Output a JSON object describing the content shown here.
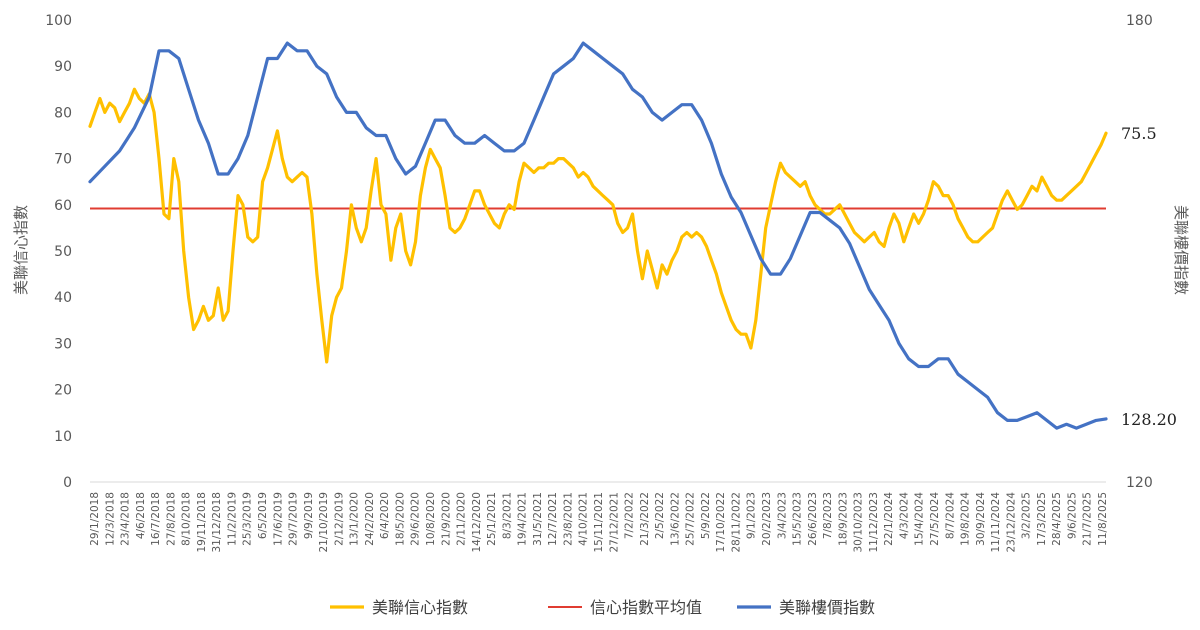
{
  "chart_data": {
    "type": "line",
    "y_left": {
      "label": "美聯信心指數",
      "range": [
        0,
        100
      ],
      "ticks": [
        "0",
        "10",
        "20",
        "30",
        "40",
        "50",
        "60",
        "70",
        "80",
        "90",
        "100"
      ]
    },
    "y_right": {
      "label": "美聯樓價指數",
      "range": [
        120,
        180
      ],
      "ticks": [
        "120",
        "180"
      ]
    },
    "x_tick_labels": [
      "29/1/2018",
      "12/3/2018",
      "23/4/2018",
      "4/6/2018",
      "16/7/2018",
      "27/8/2018",
      "8/10/2018",
      "19/11/2018",
      "31/12/2018",
      "11/2/2019",
      "25/3/2019",
      "6/5/2019",
      "17/6/2019",
      "29/7/2019",
      "9/9/2019",
      "21/10/2019",
      "2/12/2019",
      "13/1/2020",
      "24/2/2020",
      "6/4/2020",
      "18/5/2020",
      "29/6/2020",
      "10/8/2020",
      "21/9/2020",
      "2/11/2020",
      "14/12/2020",
      "25/1/2021",
      "8/3/2021",
      "19/4/2021",
      "31/5/2021",
      "12/7/2021",
      "23/8/2021",
      "4/10/2021",
      "15/11/2021",
      "27/12/2021",
      "7/2/2022",
      "21/3/2022",
      "2/5/2022",
      "13/6/2022",
      "25/7/2022",
      "5/9/2022",
      "17/10/2022",
      "28/11/2022",
      "9/1/2023",
      "20/2/2023",
      "3/4/2023",
      "15/5/2023",
      "26/6/2023",
      "7/8/2023",
      "18/9/2023",
      "30/10/2023",
      "11/12/2023",
      "22/1/2024",
      "4/3/2024",
      "15/4/2024",
      "27/5/2024",
      "8/7/2024",
      "19/8/2024",
      "30/9/2024",
      "11/11/2024",
      "23/12/2024",
      "3/2/2025",
      "17/3/2025",
      "28/4/2025",
      "9/6/2025",
      "21/7/2025",
      "11/8/2025"
    ],
    "x_range": [
      "29/1/2018",
      "11/8/2025"
    ],
    "series": [
      {
        "name": "美聯信心指數",
        "axis": "left",
        "color": "#FFC000",
        "end_label": "75.5",
        "points": [
          [
            0,
            77
          ],
          [
            1,
            80
          ],
          [
            2,
            83
          ],
          [
            3,
            80
          ],
          [
            4,
            82
          ],
          [
            5,
            81
          ],
          [
            6,
            78
          ],
          [
            7,
            80
          ],
          [
            8,
            82
          ],
          [
            9,
            85
          ],
          [
            10,
            83
          ],
          [
            11,
            82
          ],
          [
            12,
            84
          ],
          [
            13,
            80
          ],
          [
            14,
            70
          ],
          [
            15,
            58
          ],
          [
            16,
            57
          ],
          [
            17,
            70
          ],
          [
            18,
            65
          ],
          [
            19,
            50
          ],
          [
            20,
            40
          ],
          [
            21,
            33
          ],
          [
            22,
            35
          ],
          [
            23,
            38
          ],
          [
            24,
            35
          ],
          [
            25,
            36
          ],
          [
            26,
            42
          ],
          [
            27,
            35
          ],
          [
            28,
            37
          ],
          [
            29,
            50
          ],
          [
            30,
            62
          ],
          [
            31,
            60
          ],
          [
            32,
            53
          ],
          [
            33,
            52
          ],
          [
            34,
            53
          ],
          [
            35,
            65
          ],
          [
            36,
            68
          ],
          [
            37,
            72
          ],
          [
            38,
            76
          ],
          [
            39,
            70
          ],
          [
            40,
            66
          ],
          [
            41,
            65
          ],
          [
            42,
            66
          ],
          [
            43,
            67
          ],
          [
            44,
            66
          ],
          [
            45,
            58
          ],
          [
            46,
            45
          ],
          [
            47,
            35
          ],
          [
            48,
            26
          ],
          [
            49,
            36
          ],
          [
            50,
            40
          ],
          [
            51,
            42
          ],
          [
            52,
            50
          ],
          [
            53,
            60
          ],
          [
            54,
            55
          ],
          [
            55,
            52
          ],
          [
            56,
            55
          ],
          [
            57,
            63
          ],
          [
            58,
            70
          ],
          [
            59,
            60
          ],
          [
            60,
            58
          ],
          [
            61,
            48
          ],
          [
            62,
            55
          ],
          [
            63,
            58
          ],
          [
            64,
            50
          ],
          [
            65,
            47
          ],
          [
            66,
            52
          ],
          [
            67,
            62
          ],
          [
            68,
            68
          ],
          [
            69,
            72
          ],
          [
            70,
            70
          ],
          [
            71,
            68
          ],
          [
            72,
            62
          ],
          [
            73,
            55
          ],
          [
            74,
            54
          ],
          [
            75,
            55
          ],
          [
            76,
            57
          ],
          [
            77,
            60
          ],
          [
            78,
            63
          ],
          [
            79,
            63
          ],
          [
            80,
            60
          ],
          [
            81,
            58
          ],
          [
            82,
            56
          ],
          [
            83,
            55
          ],
          [
            84,
            58
          ],
          [
            85,
            60
          ],
          [
            86,
            59
          ],
          [
            87,
            65
          ],
          [
            88,
            69
          ],
          [
            89,
            68
          ],
          [
            90,
            67
          ],
          [
            91,
            68
          ],
          [
            92,
            68
          ],
          [
            93,
            69
          ],
          [
            94,
            69
          ],
          [
            95,
            70
          ],
          [
            96,
            70
          ],
          [
            97,
            69
          ],
          [
            98,
            68
          ],
          [
            99,
            66
          ],
          [
            100,
            67
          ],
          [
            101,
            66
          ],
          [
            102,
            64
          ],
          [
            103,
            63
          ],
          [
            104,
            62
          ],
          [
            105,
            61
          ],
          [
            106,
            60
          ],
          [
            107,
            56
          ],
          [
            108,
            54
          ],
          [
            109,
            55
          ],
          [
            110,
            58
          ],
          [
            111,
            50
          ],
          [
            112,
            44
          ],
          [
            113,
            50
          ],
          [
            114,
            46
          ],
          [
            115,
            42
          ],
          [
            116,
            47
          ],
          [
            117,
            45
          ],
          [
            118,
            48
          ],
          [
            119,
            50
          ],
          [
            120,
            53
          ],
          [
            121,
            54
          ],
          [
            122,
            53
          ],
          [
            123,
            54
          ],
          [
            124,
            53
          ],
          [
            125,
            51
          ],
          [
            126,
            48
          ],
          [
            127,
            45
          ],
          [
            128,
            41
          ],
          [
            129,
            38
          ],
          [
            130,
            35
          ],
          [
            131,
            33
          ],
          [
            132,
            32
          ],
          [
            133,
            32
          ],
          [
            134,
            29
          ],
          [
            135,
            35
          ],
          [
            136,
            45
          ],
          [
            137,
            55
          ],
          [
            138,
            60
          ],
          [
            139,
            65
          ],
          [
            140,
            69
          ],
          [
            141,
            67
          ],
          [
            142,
            66
          ],
          [
            143,
            65
          ],
          [
            144,
            64
          ],
          [
            145,
            65
          ],
          [
            146,
            62
          ],
          [
            147,
            60
          ],
          [
            148,
            59
          ],
          [
            149,
            58
          ],
          [
            150,
            58
          ],
          [
            151,
            59
          ],
          [
            152,
            60
          ],
          [
            153,
            58
          ],
          [
            154,
            56
          ],
          [
            155,
            54
          ],
          [
            156,
            53
          ],
          [
            157,
            52
          ],
          [
            158,
            53
          ],
          [
            159,
            54
          ],
          [
            160,
            52
          ],
          [
            161,
            51
          ],
          [
            162,
            55
          ],
          [
            163,
            58
          ],
          [
            164,
            56
          ],
          [
            165,
            52
          ],
          [
            166,
            55
          ],
          [
            167,
            58
          ],
          [
            168,
            56
          ],
          [
            169,
            58
          ],
          [
            170,
            61
          ],
          [
            171,
            65
          ],
          [
            172,
            64
          ],
          [
            173,
            62
          ],
          [
            174,
            62
          ],
          [
            175,
            60
          ],
          [
            176,
            57
          ],
          [
            177,
            55
          ],
          [
            178,
            53
          ],
          [
            179,
            52
          ],
          [
            180,
            52
          ],
          [
            181,
            53
          ],
          [
            182,
            54
          ],
          [
            183,
            55
          ],
          [
            184,
            58
          ],
          [
            185,
            61
          ],
          [
            186,
            63
          ],
          [
            187,
            61
          ],
          [
            188,
            59
          ],
          [
            189,
            60
          ],
          [
            190,
            62
          ],
          [
            191,
            64
          ],
          [
            192,
            63
          ],
          [
            193,
            66
          ],
          [
            194,
            64
          ],
          [
            195,
            62
          ],
          [
            196,
            61
          ],
          [
            197,
            61
          ],
          [
            198,
            62
          ],
          [
            199,
            63
          ],
          [
            200,
            64
          ],
          [
            201,
            65
          ],
          [
            202,
            67
          ],
          [
            203,
            69
          ],
          [
            204,
            71
          ],
          [
            205,
            73
          ],
          [
            206,
            75.5
          ]
        ]
      },
      {
        "name": "信心指數平均值",
        "axis": "left",
        "color": "#E03C31",
        "value": 59.2
      },
      {
        "name": "美聯樓價指數",
        "axis": "right",
        "color": "#4472C4",
        "end_label": "128.20",
        "points": [
          [
            0,
            159
          ],
          [
            3,
            161
          ],
          [
            6,
            163
          ],
          [
            9,
            166
          ],
          [
            12,
            170
          ],
          [
            14,
            176
          ],
          [
            16,
            176
          ],
          [
            18,
            175
          ],
          [
            20,
            171
          ],
          [
            22,
            167
          ],
          [
            24,
            164
          ],
          [
            26,
            160
          ],
          [
            28,
            160
          ],
          [
            30,
            162
          ],
          [
            32,
            165
          ],
          [
            34,
            170
          ],
          [
            36,
            175
          ],
          [
            38,
            175
          ],
          [
            40,
            177
          ],
          [
            42,
            176
          ],
          [
            44,
            176
          ],
          [
            46,
            174
          ],
          [
            48,
            173
          ],
          [
            50,
            170
          ],
          [
            52,
            168
          ],
          [
            54,
            168
          ],
          [
            56,
            166
          ],
          [
            58,
            165
          ],
          [
            60,
            165
          ],
          [
            62,
            162
          ],
          [
            64,
            160
          ],
          [
            66,
            161
          ],
          [
            68,
            164
          ],
          [
            70,
            167
          ],
          [
            72,
            167
          ],
          [
            74,
            165
          ],
          [
            76,
            164
          ],
          [
            78,
            164
          ],
          [
            80,
            165
          ],
          [
            82,
            164
          ],
          [
            84,
            163
          ],
          [
            86,
            163
          ],
          [
            88,
            164
          ],
          [
            90,
            167
          ],
          [
            92,
            170
          ],
          [
            94,
            173
          ],
          [
            96,
            174
          ],
          [
            98,
            175
          ],
          [
            100,
            177
          ],
          [
            102,
            176
          ],
          [
            104,
            175
          ],
          [
            106,
            174
          ],
          [
            108,
            173
          ],
          [
            110,
            171
          ],
          [
            112,
            170
          ],
          [
            114,
            168
          ],
          [
            116,
            167
          ],
          [
            118,
            168
          ],
          [
            120,
            169
          ],
          [
            122,
            169
          ],
          [
            124,
            167
          ],
          [
            126,
            164
          ],
          [
            128,
            160
          ],
          [
            130,
            157
          ],
          [
            132,
            155
          ],
          [
            134,
            152
          ],
          [
            136,
            149
          ],
          [
            138,
            147
          ],
          [
            140,
            147
          ],
          [
            142,
            149
          ],
          [
            144,
            152
          ],
          [
            146,
            155
          ],
          [
            148,
            155
          ],
          [
            150,
            154
          ],
          [
            152,
            153
          ],
          [
            154,
            151
          ],
          [
            156,
            148
          ],
          [
            158,
            145
          ],
          [
            160,
            143
          ],
          [
            162,
            141
          ],
          [
            164,
            138
          ],
          [
            166,
            136
          ],
          [
            168,
            135
          ],
          [
            170,
            135
          ],
          [
            172,
            136
          ],
          [
            174,
            136
          ],
          [
            176,
            134
          ],
          [
            178,
            133
          ],
          [
            180,
            132
          ],
          [
            182,
            131
          ],
          [
            184,
            129
          ],
          [
            186,
            128
          ],
          [
            188,
            128
          ],
          [
            190,
            128.5
          ],
          [
            192,
            129
          ],
          [
            194,
            128
          ],
          [
            196,
            127
          ],
          [
            198,
            127.5
          ],
          [
            200,
            127
          ],
          [
            202,
            127.5
          ],
          [
            204,
            128
          ],
          [
            206,
            128.2
          ]
        ]
      }
    ],
    "legend": {
      "position": "bottom",
      "items": [
        "美聯信心指數",
        "信心指數平均值",
        "美聯樓價指數"
      ]
    },
    "grid": false
  }
}
